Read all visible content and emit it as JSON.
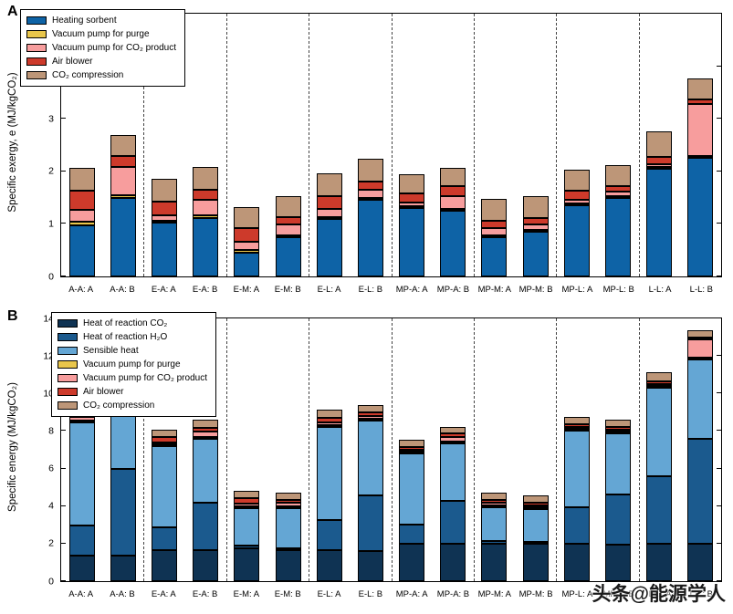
{
  "watermark": "头条@能源学人",
  "chart_data": [
    {
      "id": "A",
      "type": "bar",
      "stacked": true,
      "label": "A",
      "ylabel": "Specific exergy, e (MJ/kgCO₂)",
      "ymax": 5,
      "yticks": [
        0,
        1,
        2,
        3,
        4,
        5
      ],
      "legend_position": "top-left-inside",
      "grid": false,
      "categories": [
        "A-A: A",
        "A-A: B",
        "E-A: A",
        "E-A: B",
        "E-M: A",
        "E-M: B",
        "E-L: A",
        "E-L: B",
        "MP-A: A",
        "MP-A: B",
        "MP-M: A",
        "MP-M: B",
        "MP-L: A",
        "MP-L: B",
        "L-L: A",
        "L-L: B"
      ],
      "group_separators_after": [
        1,
        3,
        5,
        7,
        9,
        11,
        13
      ],
      "series": [
        {
          "name": "Heating sorbent",
          "color": "#0e63a6",
          "values": [
            0.97,
            1.5,
            1.02,
            1.12,
            0.45,
            0.75,
            1.1,
            1.45,
            1.3,
            1.25,
            0.75,
            0.85,
            1.35,
            1.5,
            2.05,
            2.25
          ]
        },
        {
          "name": "Vacuum pump for purge",
          "color": "#e9c64b",
          "values": [
            0.08,
            0.04,
            0.04,
            0.04,
            0.06,
            0.03,
            0.03,
            0.03,
            0.02,
            0.02,
            0.02,
            0.02,
            0.02,
            0.02,
            0.02,
            0.02
          ]
        },
        {
          "name": "Vacuum pump for CO₂ product",
          "color": "#f79d9d",
          "values": [
            0.22,
            0.55,
            0.1,
            0.3,
            0.15,
            0.2,
            0.15,
            0.17,
            0.08,
            0.25,
            0.13,
            0.1,
            0.08,
            0.08,
            0.05,
            1.0
          ]
        },
        {
          "name": "Air blower",
          "color": "#cd3a2b",
          "values": [
            0.37,
            0.2,
            0.27,
            0.19,
            0.26,
            0.15,
            0.25,
            0.16,
            0.16,
            0.18,
            0.15,
            0.13,
            0.16,
            0.11,
            0.14,
            0.09
          ]
        },
        {
          "name": "CO₂ compression",
          "color": "#bd9678",
          "values": [
            0.42,
            0.41,
            0.42,
            0.43,
            0.4,
            0.39,
            0.43,
            0.42,
            0.37,
            0.36,
            0.41,
            0.41,
            0.41,
            0.4,
            0.49,
            0.4
          ]
        }
      ]
    },
    {
      "id": "B",
      "type": "bar",
      "stacked": true,
      "label": "B",
      "ylabel": "Specific energy (MJ/kgCO₂)",
      "ymax": 14,
      "yticks": [
        0,
        2,
        4,
        6,
        8,
        10,
        12,
        14
      ],
      "legend_position": "top-left-inside",
      "grid": false,
      "categories": [
        "A-A: A",
        "A-A: B",
        "E-A: A",
        "E-A: B",
        "E-M: A",
        "E-M: B",
        "E-L: A",
        "E-L: B",
        "MP-A: A",
        "MP-A: B",
        "MP-M: A",
        "MP-M: B",
        "MP-L: A",
        "MP-L: B",
        "L-L: A",
        "L-L: B"
      ],
      "group_separators_after": [
        1,
        3,
        5,
        7,
        9,
        11,
        13
      ],
      "series": [
        {
          "name": "Heat of reaction CO₂",
          "color": "#0f3353",
          "values": [
            1.35,
            1.35,
            1.65,
            1.65,
            1.75,
            1.65,
            1.65,
            1.6,
            2.0,
            2.0,
            2.0,
            2.0,
            2.0,
            1.95,
            2.0,
            2.0
          ]
        },
        {
          "name": "Heat of reaction H₂O",
          "color": "#1b5a8e",
          "values": [
            1.6,
            4.65,
            1.2,
            2.55,
            0.15,
            0.1,
            1.6,
            2.95,
            1.0,
            2.3,
            0.15,
            0.1,
            1.95,
            2.65,
            3.6,
            5.6
          ]
        },
        {
          "name": "Sensible heat",
          "color": "#64a6d4",
          "values": [
            5.5,
            4.3,
            4.35,
            3.4,
            2.0,
            2.15,
            4.95,
            4.0,
            3.8,
            3.05,
            1.8,
            1.75,
            4.05,
            3.3,
            4.7,
            4.2
          ]
        },
        {
          "name": "Vacuum pump for purge",
          "color": "#e9c64b",
          "values": [
            0.08,
            0.04,
            0.04,
            0.04,
            0.06,
            0.03,
            0.03,
            0.03,
            0.02,
            0.02,
            0.02,
            0.02,
            0.02,
            0.02,
            0.02,
            0.02
          ]
        },
        {
          "name": "Vacuum pump for CO₂ product",
          "color": "#f79d9d",
          "values": [
            0.22,
            0.55,
            0.1,
            0.3,
            0.15,
            0.2,
            0.15,
            0.17,
            0.08,
            0.25,
            0.13,
            0.1,
            0.08,
            0.08,
            0.05,
            1.0
          ]
        },
        {
          "name": "Air blower",
          "color": "#cd3a2b",
          "values": [
            0.37,
            0.2,
            0.27,
            0.19,
            0.26,
            0.15,
            0.25,
            0.16,
            0.16,
            0.18,
            0.15,
            0.13,
            0.16,
            0.11,
            0.14,
            0.09
          ]
        },
        {
          "name": "CO₂ compression",
          "color": "#bd9678",
          "values": [
            0.42,
            0.41,
            0.42,
            0.43,
            0.4,
            0.39,
            0.43,
            0.42,
            0.37,
            0.36,
            0.41,
            0.41,
            0.41,
            0.4,
            0.49,
            0.4
          ]
        }
      ]
    }
  ]
}
